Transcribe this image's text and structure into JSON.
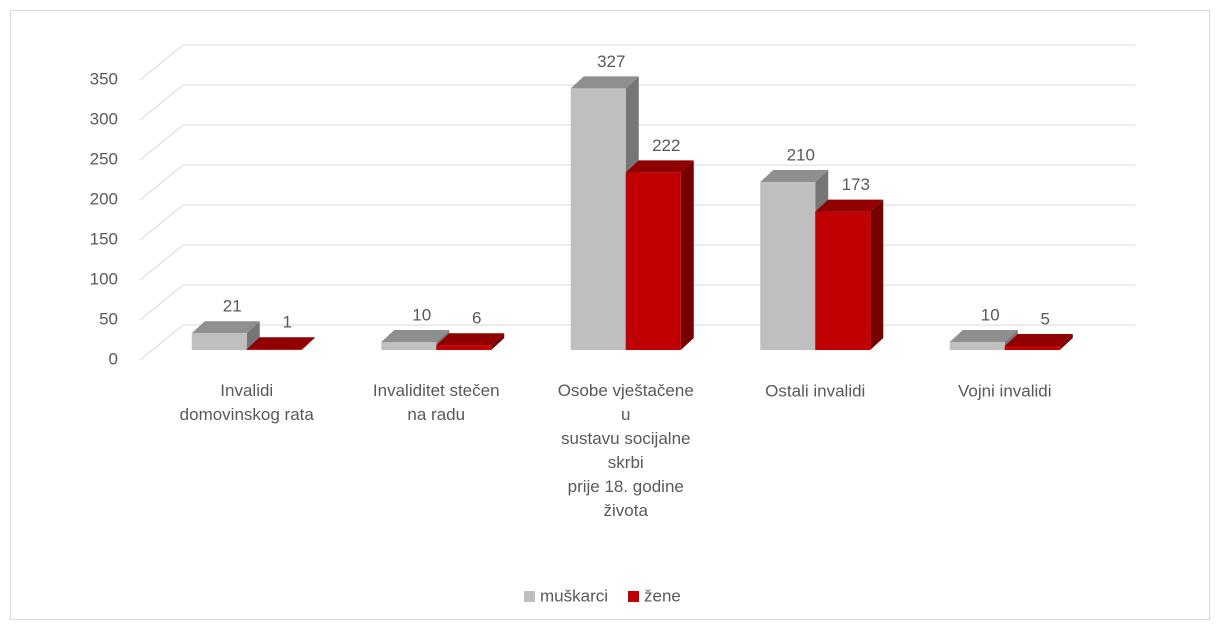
{
  "chart_data": {
    "type": "bar3d",
    "categories": [
      "Invalidi\ndomovinskog rata",
      "Invaliditet stečen\nna radu",
      "Osobe vještačene\nu\nsustavu socijalne\nskrbi\nprije 18. godine\nživota",
      "Ostali invalidi",
      "Vojni invalidi"
    ],
    "series": [
      {
        "name": "muškarci",
        "color": "#bfbfbf",
        "values": [
          21,
          10,
          327,
          210,
          10
        ]
      },
      {
        "name": "žene",
        "color": "#c00000",
        "values": [
          1,
          6,
          222,
          173,
          5
        ]
      }
    ],
    "ylim": [
      0,
      350
    ],
    "yticks": [
      0,
      50,
      100,
      150,
      200,
      250,
      300,
      350
    ],
    "grid": true,
    "legend": "bottom"
  }
}
